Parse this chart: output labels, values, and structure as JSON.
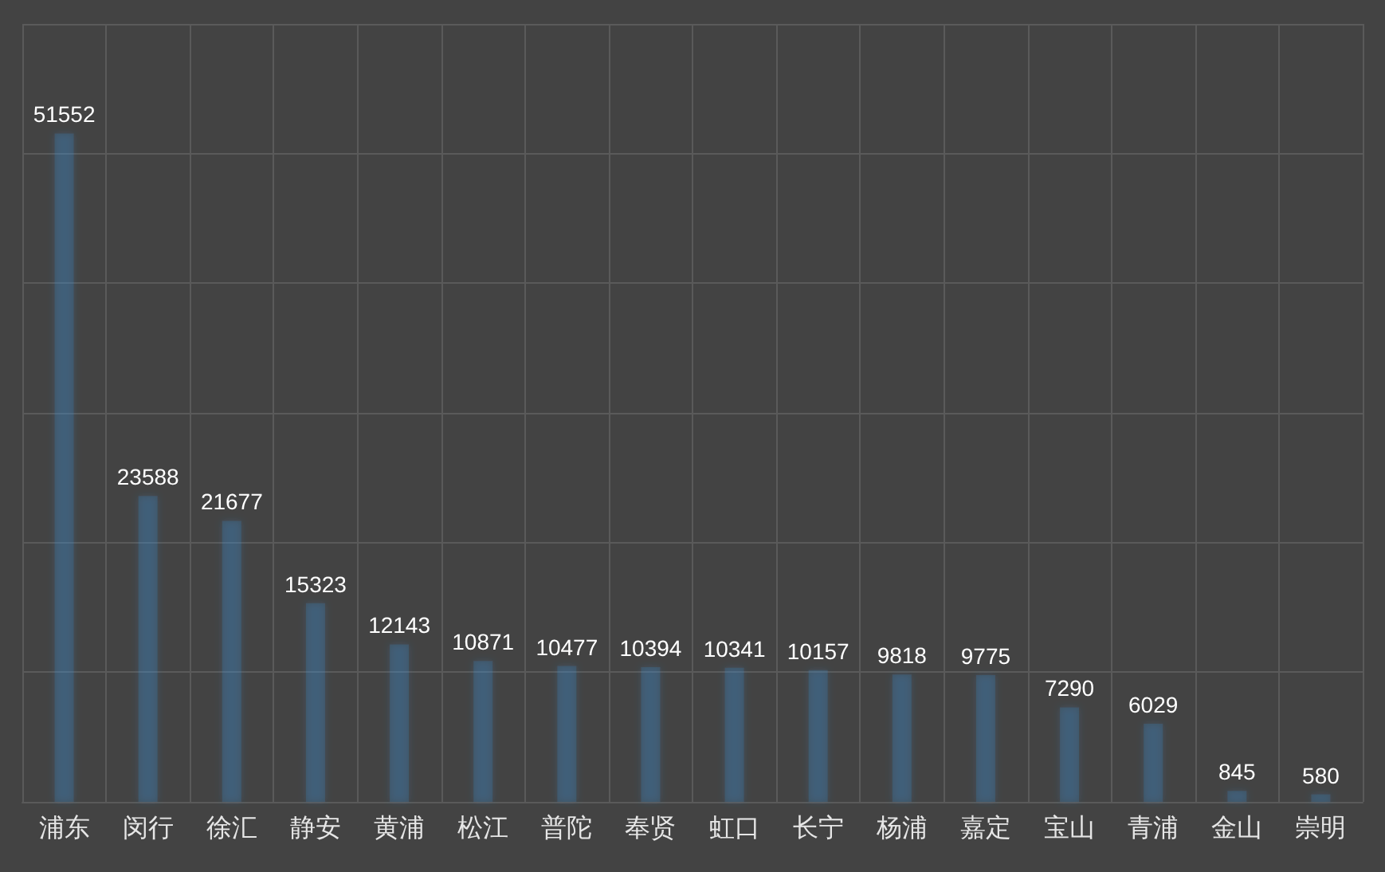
{
  "chart_data": {
    "type": "bar",
    "categories": [
      "浦东",
      "闵行",
      "徐汇",
      "静安",
      "黄浦",
      "松江",
      "普陀",
      "奉贤",
      "虹口",
      "长宁",
      "杨浦",
      "嘉定",
      "宝山",
      "青浦",
      "金山",
      "崇明"
    ],
    "values": [
      51552,
      23588,
      21677,
      15323,
      12143,
      10871,
      10477,
      10394,
      10341,
      10157,
      9818,
      9775,
      7290,
      6029,
      845,
      580
    ],
    "color": "#3a8fd9",
    "ylim": [
      0,
      60000
    ],
    "tick_labels": "x",
    "grid": true,
    "data_labels": true
  }
}
